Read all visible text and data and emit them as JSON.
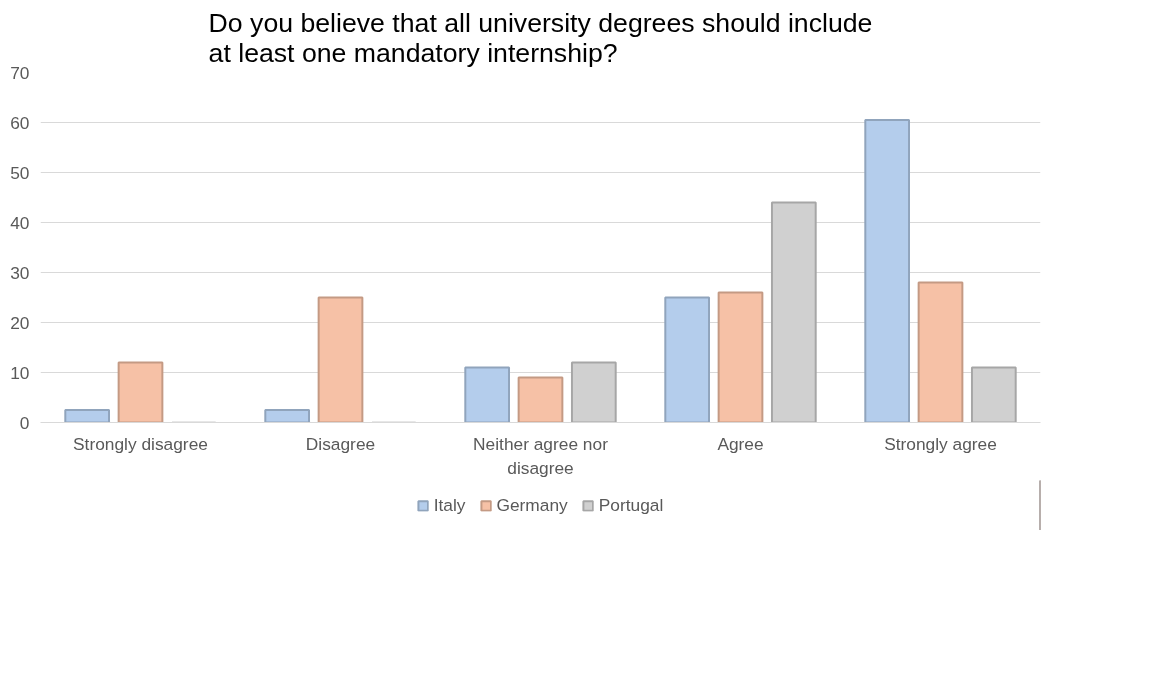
{
  "chart_data": {
    "type": "bar",
    "title": "Do you believe that all university degrees should include\nat least one mandatory internship?",
    "categories": [
      "Strongly disagree",
      "Disagree",
      "Neither agree nor\ndisagree",
      "Agree",
      "Strongly agree"
    ],
    "series": [
      {
        "name": "Italy",
        "color": "#b4cdec",
        "values": [
          2.5,
          2.5,
          11,
          25,
          60.5
        ]
      },
      {
        "name": "Germany",
        "color": "#f6c1a6",
        "values": [
          12,
          25,
          9,
          26,
          28
        ]
      },
      {
        "name": "Portugal",
        "color": "#d0d0d0",
        "values": [
          0,
          0,
          12,
          44,
          11
        ]
      }
    ],
    "ylim": [
      0,
      70
    ],
    "yticks": [
      0,
      10,
      20,
      30,
      40,
      50,
      60,
      70
    ],
    "grid": "y",
    "legend": "bottom"
  }
}
